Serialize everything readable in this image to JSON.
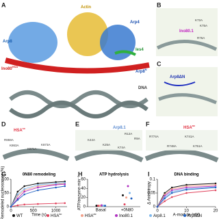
{
  "panels": [
    {
      "letter": "A",
      "labels": [
        {
          "text": "Arp8"
        },
        {
          "text": "Actin"
        },
        {
          "text": "Arp4"
        },
        {
          "text": "Ies4"
        },
        {
          "text": "Ino80",
          "sup": "HSA"
        },
        {
          "text": "Arp8",
          "sup": "N"
        },
        {
          "text": "DNA"
        }
      ]
    },
    {
      "letter": "B",
      "labels": [
        {
          "text": "Ino80.1"
        },
        {
          "text": "K72A"
        },
        {
          "text": "K75A"
        },
        {
          "text": "R76A"
        }
      ]
    },
    {
      "letter": "C",
      "labels": [
        {
          "text": "Arp8ΔN"
        }
      ]
    },
    {
      "letter": "D",
      "labels": [
        {
          "text": "HSA",
          "sup": "sc"
        },
        {
          "text": "R859A"
        },
        {
          "text": "K863A"
        },
        {
          "text": "K871A"
        },
        {
          "text": "K873A"
        }
      ]
    },
    {
      "letter": "E",
      "labels": [
        {
          "text": "Arp8.1"
        },
        {
          "text": "R12A"
        },
        {
          "text": "R9A"
        },
        {
          "text": "K44A"
        },
        {
          "text": "K25A"
        },
        {
          "text": "K74A"
        }
      ]
    },
    {
      "letter": "F",
      "labels": [
        {
          "text": "HSA",
          "sup": "ac"
        },
        {
          "text": "R774A"
        },
        {
          "text": "K741A"
        },
        {
          "text": "R748A"
        },
        {
          "text": "K751A"
        }
      ]
    }
  ],
  "legend": [
    {
      "text": "WT",
      "color": "#111111"
    },
    {
      "text": "HSA",
      "sup": "sc",
      "color": "#e0405a"
    },
    {
      "text": "HSA",
      "sup": "ac",
      "color": "#f2a08a"
    },
    {
      "text": "Ino80.1",
      "color": "#b030c0"
    },
    {
      "text": "Arp8.1",
      "color": "#7fb8ec"
    },
    {
      "text": "Arp8ΔN",
      "color": "#2060c0"
    }
  ],
  "plots": [
    {
      "letter": "G",
      "type": "line",
      "title": "0N80 remodeling",
      "xlabel": "Time (s)",
      "ylabel": "Remodeled nucleosomes (%)",
      "x": [
        0,
        150,
        300,
        600,
        1000,
        1200
      ],
      "xlim": [
        0,
        1250
      ],
      "xticks": [
        0,
        500,
        1000
      ],
      "ylim": [
        0,
        100
      ],
      "yticks": [
        0,
        50,
        100
      ],
      "series": [
        {
          "values": [
            0,
            55,
            75,
            85,
            90,
            92
          ]
        },
        {
          "values": [
            0,
            5,
            8,
            10,
            12,
            13
          ]
        },
        {
          "values": [
            0,
            40,
            60,
            75,
            82,
            85
          ]
        },
        {
          "values": [
            0,
            30,
            55,
            70,
            80,
            82
          ]
        },
        {
          "values": [
            0,
            45,
            65,
            80,
            85,
            88
          ]
        },
        {
          "values": [
            0,
            25,
            45,
            60,
            70,
            75
          ]
        }
      ]
    },
    {
      "letter": "H",
      "type": "dot",
      "title": "ATP hydrolysis",
      "ylabel": "ATP/enzyme·min⁻¹",
      "categories": [
        "Basal",
        "+0N80"
      ],
      "ylim": [
        0,
        60
      ],
      "yticks": [
        0,
        20,
        40,
        60
      ],
      "series": [
        {
          "values": [
            2,
            25
          ]
        },
        {
          "values": [
            2,
            5
          ]
        },
        {
          "values": [
            2,
            20
          ]
        },
        {
          "values": [
            3,
            45
          ]
        },
        {
          "values": [
            2,
            30
          ]
        },
        {
          "values": [
            2,
            18
          ]
        }
      ]
    },
    {
      "letter": "I",
      "type": "line",
      "title": "DNA binding",
      "xlabel": "A-module (nM)",
      "ylabel": "Δ Anisotropy",
      "x": [
        0,
        2.5,
        5,
        10,
        20
      ],
      "xlim": [
        0,
        20
      ],
      "xticks": [
        0,
        10,
        20
      ],
      "ylim": [
        0,
        0.1
      ],
      "yticks": [
        0,
        0.05,
        0.1
      ],
      "series": [
        {
          "values": [
            0,
            0.05,
            0.07,
            0.08,
            0.085
          ]
        },
        {
          "values": [
            0,
            0.02,
            0.035,
            0.05,
            0.06
          ]
        },
        {
          "values": [
            0,
            0.045,
            0.065,
            0.075,
            0.08
          ]
        },
        {
          "values": [
            0,
            0.04,
            0.06,
            0.07,
            0.075
          ]
        },
        {
          "values": [
            0,
            0.035,
            0.055,
            0.065,
            0.072
          ]
        },
        {
          "values": [
            0,
            0.03,
            0.05,
            0.062,
            0.07
          ]
        }
      ]
    }
  ]
}
